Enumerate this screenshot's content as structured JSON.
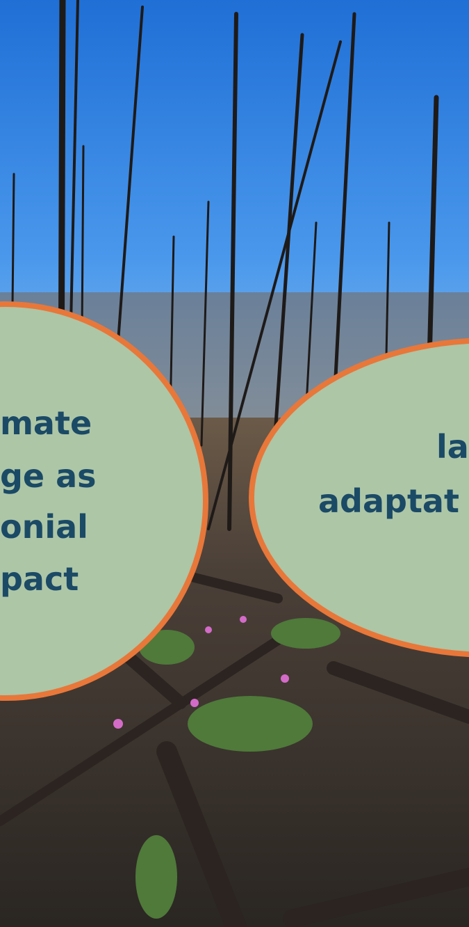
{
  "left_bubble": {
    "lines": [
      "mate",
      "ge as",
      "onial",
      "pact"
    ]
  },
  "right_bubble": {
    "lines": [
      "la",
      "adaptat"
    ]
  }
}
